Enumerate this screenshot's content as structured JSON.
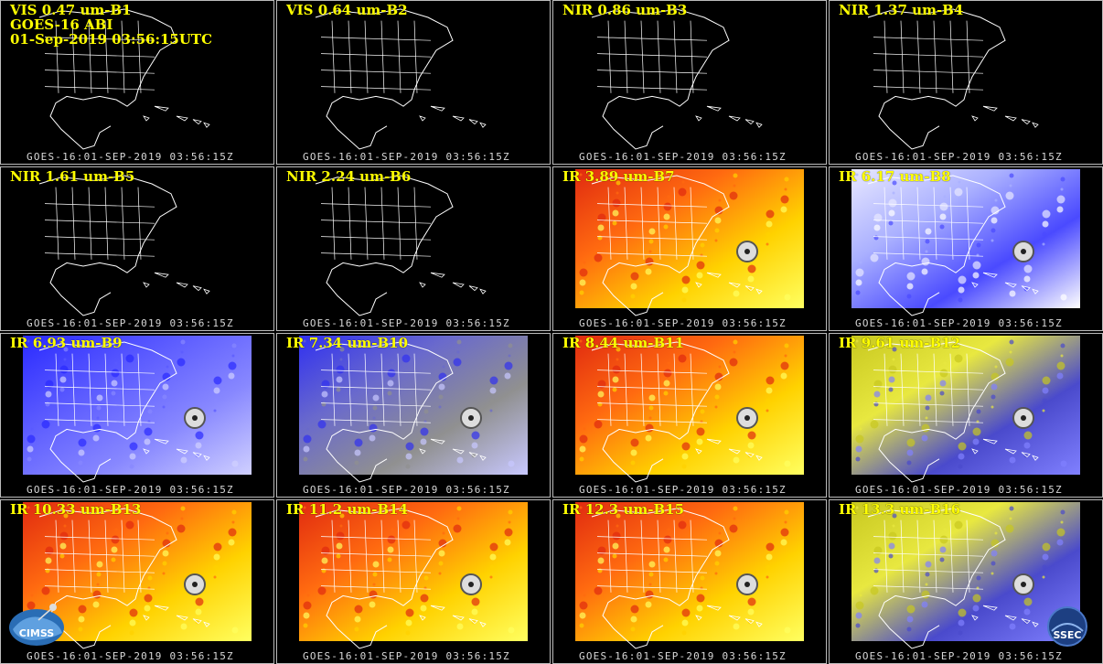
{
  "header": {
    "line2": "GOES-16 ABI",
    "line3": "01-Sep-2019 03:56:15UTC"
  },
  "timestamp": "GOES-16:01-SEP-2019 03:56:15Z",
  "panels": [
    {
      "label": "VIS 0.47 um-B1",
      "style": "vis"
    },
    {
      "label": "VIS 0.64 um-B2",
      "style": "vis"
    },
    {
      "label": "NIR 0.86 um-B3",
      "style": "vis"
    },
    {
      "label": "NIR 1.37 um-B4",
      "style": "vis"
    },
    {
      "label": "NIR 1.61 um-B5",
      "style": "vis"
    },
    {
      "label": "NIR 2.24 um-B6",
      "style": "vis"
    },
    {
      "label": "IR 3.89 um-B7",
      "style": "ir-warm"
    },
    {
      "label": "IR 6.17 um-B8",
      "style": "wv-light"
    },
    {
      "label": "IR 6.93 um-B9",
      "style": "wv-blue"
    },
    {
      "label": "IR 7.34 um-B10",
      "style": "wv-blue2"
    },
    {
      "label": "IR 8.44 um-B11",
      "style": "ir-warm"
    },
    {
      "label": "IR 9.61 um-B12",
      "style": "ozone"
    },
    {
      "label": "IR 10.33 um-B13",
      "style": "ir-warm"
    },
    {
      "label": "IR 11.2 um-B14",
      "style": "ir-warm"
    },
    {
      "label": "IR 12.3 um-B15",
      "style": "ir-warm"
    },
    {
      "label": "IR 13.3 um-B16",
      "style": "ozone"
    }
  ],
  "logos": {
    "left": "CIMSS",
    "right": "SSEC"
  }
}
